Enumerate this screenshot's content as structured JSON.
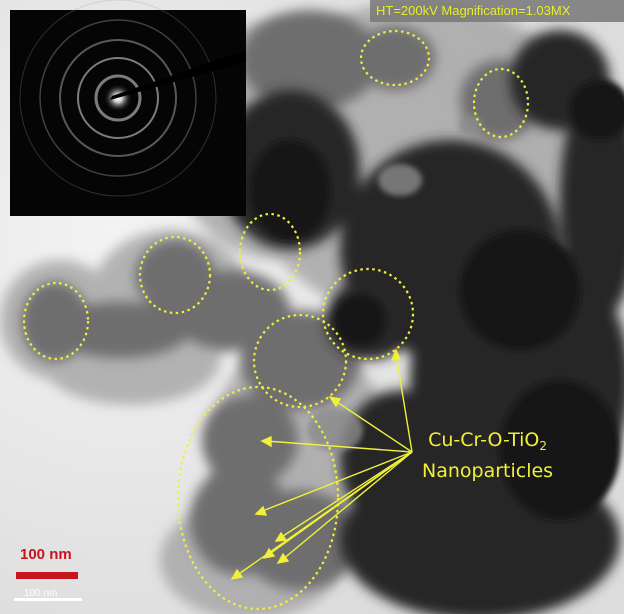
{
  "image": {
    "header_text": "HT=200kV Magnification=1.03MX",
    "label_line1": "Cu-Cr-O-TiO",
    "label_subscript": "2",
    "label_line2": "Nanoparticles",
    "scale_bar_text": "100 nm",
    "scale_bar_text_small": "100 nm"
  },
  "colors": {
    "annotation": "#f0f03a",
    "scale_bar": "#c8141c",
    "background": "#ffffff",
    "particle_dark": "#2a2a2a"
  }
}
